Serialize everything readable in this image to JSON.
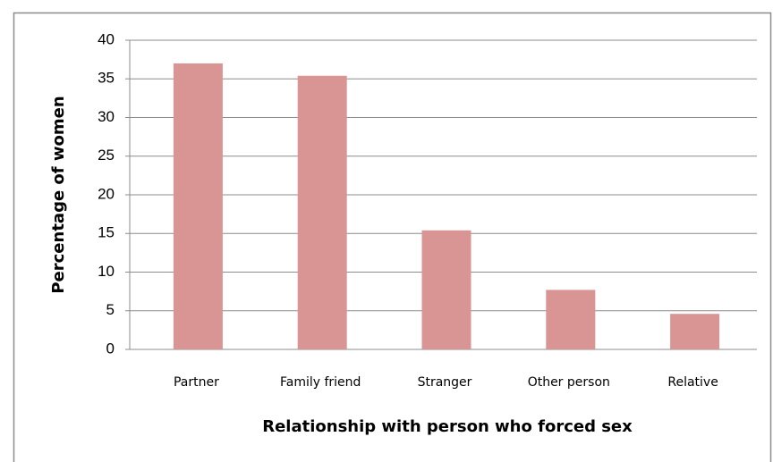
{
  "chart_data": {
    "type": "bar",
    "x_label": "Relationship with person who forced sex",
    "y_label": "Percentage of women",
    "categories": [
      "Partner",
      "Family friend",
      "Stranger",
      "Other person",
      "Relative"
    ],
    "values": [
      37,
      35.4,
      15.4,
      7.7,
      4.6
    ],
    "color": "#d99594",
    "ylim": [
      0,
      40
    ],
    "yticks": [
      0,
      5,
      10,
      15,
      20,
      25,
      30,
      35,
      40
    ],
    "grid": true
  }
}
